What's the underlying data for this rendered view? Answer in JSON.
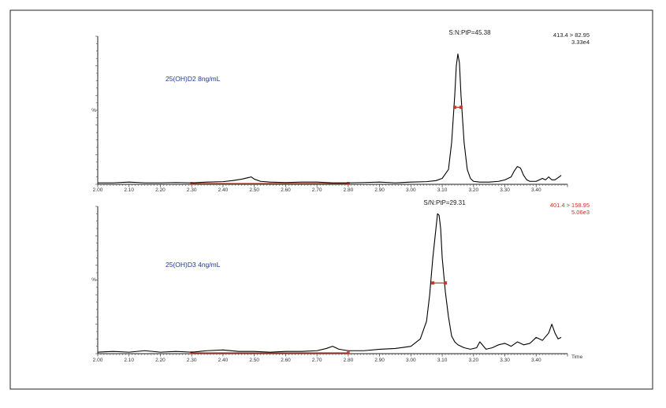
{
  "chart_data": [
    {
      "type": "line",
      "name_label": "25(OH)D2 8ng/mL",
      "sn_label": "S:N:PtP=45.38",
      "transition": "413.4 > 82.95",
      "intensity": "3.33e4",
      "ylabel": "%",
      "xlabel": "",
      "xlim": [
        2.0,
        3.5
      ],
      "ylim": [
        0,
        100
      ],
      "x_ticks": [
        "2.00",
        "2.10",
        "2.20",
        "2.30",
        "2.40",
        "2.50",
        "2.60",
        "2.70",
        "2.80",
        "2.90",
        "3.00",
        "3.10",
        "3.20",
        "3.30",
        "3.40"
      ],
      "noise_markers_x": [
        2.3,
        2.8
      ],
      "peak_width_markers_x": [
        3.14,
        3.16
      ],
      "peak_width_level": 52,
      "series": [
        {
          "x": [
            2.0,
            2.05,
            2.1,
            2.15,
            2.2,
            2.25,
            2.3,
            2.35,
            2.4,
            2.43,
            2.46,
            2.48,
            2.49,
            2.5,
            2.52,
            2.55,
            2.6,
            2.65,
            2.7,
            2.75,
            2.8,
            2.85,
            2.9,
            2.95,
            3.0,
            3.05,
            3.08,
            3.1,
            3.12,
            3.13,
            3.14,
            3.145,
            3.15,
            3.155,
            3.16,
            3.17,
            3.18,
            3.19,
            3.2,
            3.22,
            3.25,
            3.28,
            3.3,
            3.32,
            3.33,
            3.34,
            3.35,
            3.36,
            3.37,
            3.38,
            3.4,
            3.42,
            3.43,
            3.44,
            3.45,
            3.46,
            3.47,
            3.48
          ],
          "y": [
            1,
            1,
            1.5,
            1,
            1,
            1.2,
            1,
            1.5,
            1.8,
            2.5,
            3.5,
            4.5,
            5,
            3.5,
            2,
            1.5,
            1.2,
            1.5,
            1.5,
            1,
            1,
            1.2,
            1.5,
            1,
            1.5,
            1.8,
            2.5,
            4,
            10,
            28,
            60,
            80,
            88,
            82,
            60,
            28,
            10,
            4,
            2,
            1.5,
            1.5,
            2,
            3,
            5,
            9,
            12,
            11,
            6,
            3,
            2,
            2,
            4,
            3,
            5,
            3,
            3,
            4.5,
            6
          ]
        }
      ]
    },
    {
      "type": "line",
      "name_label": "25(OH)D3 4ng/mL",
      "sn_label": "S/N:PtP=29.31",
      "transition": "401.4 > 158.95",
      "intensity": "5.06e3",
      "ylabel": "%",
      "xlabel": "Time",
      "xlim": [
        2.0,
        3.5
      ],
      "ylim": [
        0,
        100
      ],
      "x_ticks": [
        "2.00",
        "2.10",
        "2.20",
        "2.30",
        "2.40",
        "2.50",
        "2.60",
        "2.70",
        "2.80",
        "2.90",
        "3.00",
        "3.10",
        "3.20",
        "3.30",
        "3.40"
      ],
      "noise_markers_x": [
        2.3,
        2.8
      ],
      "peak_width_markers_x": [
        3.07,
        3.11
      ],
      "peak_width_level": 48,
      "series": [
        {
          "x": [
            2.0,
            2.05,
            2.1,
            2.15,
            2.2,
            2.25,
            2.3,
            2.35,
            2.4,
            2.45,
            2.5,
            2.55,
            2.6,
            2.65,
            2.7,
            2.73,
            2.75,
            2.77,
            2.8,
            2.85,
            2.9,
            2.95,
            3.0,
            3.03,
            3.05,
            3.06,
            3.07,
            3.08,
            3.085,
            3.09,
            3.095,
            3.1,
            3.11,
            3.12,
            3.13,
            3.14,
            3.15,
            3.17,
            3.19,
            3.21,
            3.22,
            3.24,
            3.26,
            3.28,
            3.3,
            3.32,
            3.34,
            3.36,
            3.38,
            3.4,
            3.42,
            3.44,
            3.45,
            3.46,
            3.47,
            3.48
          ],
          "y": [
            1,
            1.5,
            1,
            2,
            1,
            1.5,
            1,
            2,
            2.5,
            1.5,
            1.5,
            1,
            1.5,
            1.5,
            2,
            3.5,
            5,
            3,
            2,
            2,
            3,
            3.5,
            5,
            10,
            22,
            40,
            65,
            85,
            95,
            94,
            85,
            65,
            42,
            25,
            12,
            8,
            6,
            4,
            3,
            4,
            8,
            3,
            4,
            6,
            7,
            5,
            8,
            6,
            7,
            11,
            9,
            14,
            20,
            14,
            10,
            11
          ]
        }
      ]
    }
  ]
}
